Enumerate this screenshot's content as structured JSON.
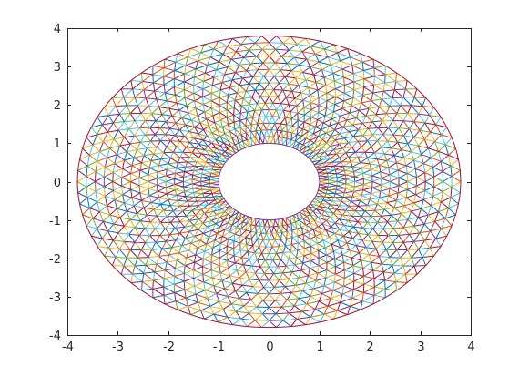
{
  "chart_data": {
    "type": "scatter",
    "plot_kind": "triangular mesh plot",
    "title": "",
    "xlabel": "",
    "ylabel": "",
    "xlim": [
      -4,
      4
    ],
    "ylim": [
      -4,
      4
    ],
    "xticks": [
      -4,
      -3,
      -2,
      -1,
      0,
      1,
      2,
      3,
      4
    ],
    "yticks": [
      -4,
      -3,
      -2,
      -1,
      0,
      1,
      2,
      3,
      4
    ],
    "xtick_labels": [
      "-4",
      "-3",
      "-2",
      "-1",
      "0",
      "1",
      "2",
      "3",
      "4"
    ],
    "ytick_labels": [
      "-4",
      "-3",
      "-2",
      "-1",
      "0",
      "1",
      "2",
      "3",
      "4"
    ],
    "grid": false,
    "legend": "none",
    "domain": {
      "shape": "annulus (ellipse-shaped on screen)",
      "inner_radius": 1,
      "outer_radius": 3.8,
      "center": [
        0,
        0
      ]
    },
    "mesh": {
      "rings": 16,
      "segments": 82
    },
    "edge_colors": [
      "#0072bd",
      "#d95319",
      "#edb120",
      "#7e2f8e",
      "#77ac30",
      "#4dbeee",
      "#a2142f"
    ]
  }
}
